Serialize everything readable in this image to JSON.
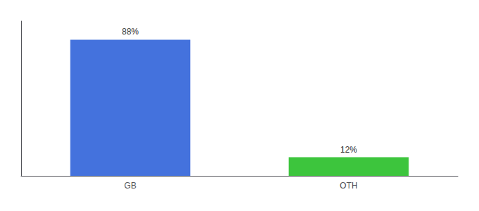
{
  "chart_data": {
    "type": "bar",
    "categories": [
      "GB",
      "OTH"
    ],
    "values": [
      88,
      12
    ],
    "colors": [
      "#4472DD",
      "#3DC53D"
    ],
    "value_labels": [
      "88%",
      "12%"
    ],
    "data_labels": true,
    "ylim": [
      0,
      100
    ],
    "tick_labels": "x",
    "grid": false
  }
}
